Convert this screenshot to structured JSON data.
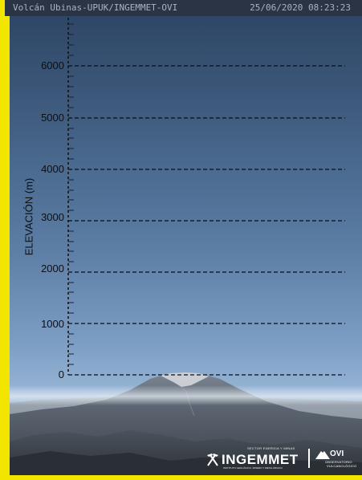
{
  "header": {
    "title": "Volcán Ubinas-UPUK/INGEMMET-OVI",
    "timestamp": "25/06/2020 08:23:23"
  },
  "scale": {
    "axis_title": "ELEVACIÓN (m)",
    "ticks": [
      "6000",
      "5000",
      "4000",
      "3000",
      "2000",
      "1000",
      "0"
    ]
  },
  "logos": {
    "ingemmet": "INGEMMET",
    "ingemmet_top": "SECTOR ENERGIA Y MINAS",
    "ingemmet_bottom": "INSTITUTO GEOLÓGICO, MINERO Y METALÚRGICO",
    "ovi": "OVI",
    "ovi_sub1": "OBSERVATORIO",
    "ovi_sub2": "VULCANOLÓGICO"
  },
  "colors": {
    "frame": "#f2e600",
    "header_bg": "#2a3445",
    "header_text": "#a9b3c2"
  }
}
